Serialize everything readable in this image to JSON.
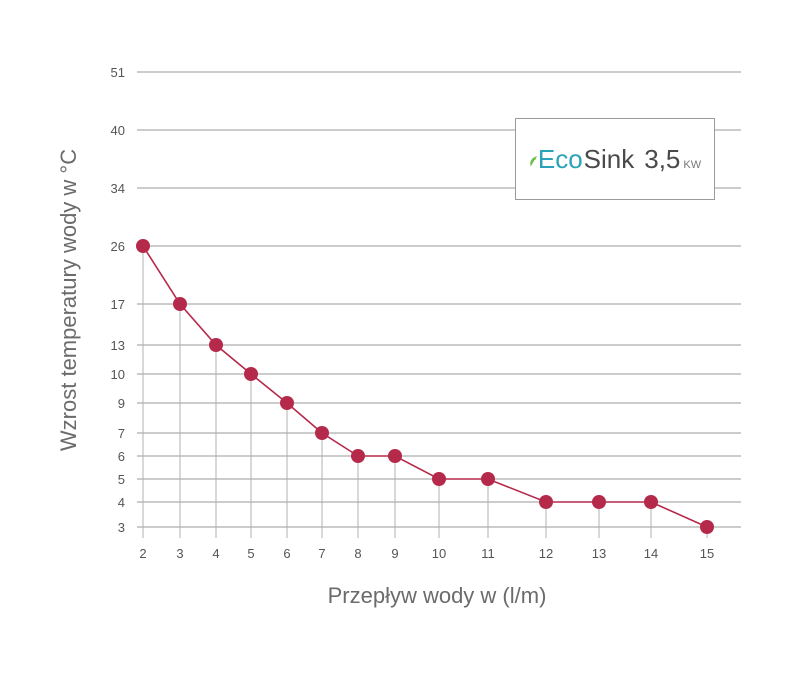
{
  "chart_data": {
    "type": "line",
    "xlabel": "Przepływ wody w (l/m)",
    "ylabel": "Wzrost temperatury wody w °C",
    "x": [
      2,
      3,
      4,
      5,
      6,
      7,
      8,
      9,
      10,
      11,
      12,
      13,
      14,
      15
    ],
    "x_tick_labels": [
      "2",
      "3",
      "4",
      "5",
      "6",
      "7",
      "8",
      "9",
      "10",
      "11",
      "12",
      "13",
      "14",
      "15"
    ],
    "y_tick_labels": [
      "3",
      "4",
      "5",
      "6",
      "7",
      "9",
      "10",
      "13",
      "17",
      "26",
      "34",
      "40",
      "51"
    ],
    "series": [
      {
        "values": [
          26,
          17,
          13,
          10,
          9,
          7,
          6,
          6,
          5,
          5,
          4,
          4,
          4,
          3
        ]
      }
    ],
    "grid": "horizontal",
    "line_color": "#b5294a",
    "marker_color": "#b5294a",
    "grid_color": "#9a9a9a",
    "drop_line_color": "#b0b0b0"
  },
  "legend": {
    "icon": "leaf-icon",
    "brand_eco": "Eco",
    "brand_sink": "Sink",
    "power": "3,5",
    "unit": "KW"
  }
}
